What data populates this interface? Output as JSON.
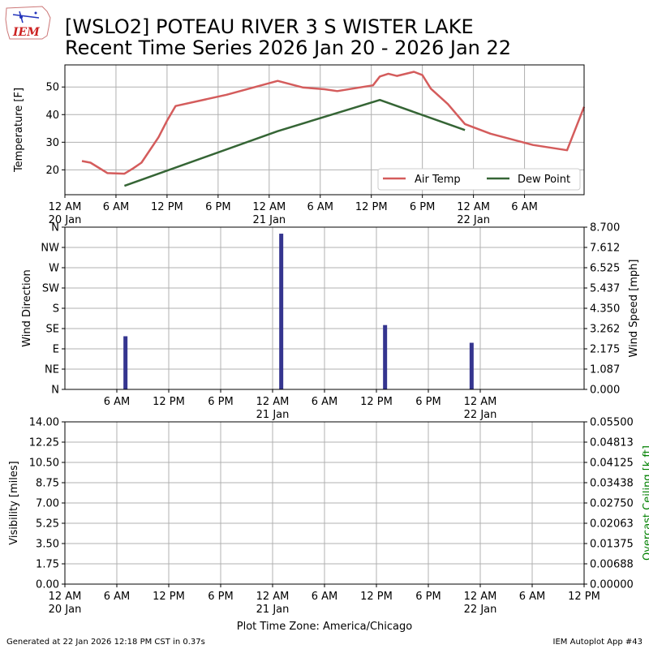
{
  "header": {
    "title_line1": "[WSLO2] POTEAU RIVER 3 S WISTER LAKE",
    "title_line2": "Recent Time Series 2026 Jan 20 - 2026 Jan 22",
    "logo_text": "IEM"
  },
  "footer": {
    "generated": "Generated at 22 Jan 2026 12:18 PM CST in 0.37s",
    "app": "IEM Autoplot App #43",
    "xlabel": "Plot Time Zone: America/Chicago"
  },
  "colors": {
    "air_temp": "#d45c5c",
    "dew_point": "#356535",
    "wind_bar": "#35358f",
    "ceiling_label": "#008000",
    "grid": "#b0b0b0"
  },
  "chart_data": [
    {
      "type": "line",
      "ylabel": "Temperature [F]",
      "ylim": [
        11,
        58
      ],
      "yticks": [
        "20",
        "30",
        "40",
        "50"
      ],
      "xlim": [
        0,
        61
      ],
      "xticks": [
        {
          "h": 0,
          "l1": "12 AM",
          "l2": "20 Jan"
        },
        {
          "h": 6,
          "l1": "6 AM",
          "l2": ""
        },
        {
          "h": 12,
          "l1": "12 PM",
          "l2": ""
        },
        {
          "h": 18,
          "l1": "6 PM",
          "l2": ""
        },
        {
          "h": 24,
          "l1": "12 AM",
          "l2": "21 Jan"
        },
        {
          "h": 30,
          "l1": "6 AM",
          "l2": ""
        },
        {
          "h": 36,
          "l1": "12 PM",
          "l2": ""
        },
        {
          "h": 42,
          "l1": "6 PM",
          "l2": ""
        },
        {
          "h": 48,
          "l1": "12 AM",
          "l2": "22 Jan"
        },
        {
          "h": 54,
          "l1": "6 AM",
          "l2": ""
        }
      ],
      "grid": true,
      "legend_position": "lower-right",
      "series": [
        {
          "name": "Air Temp",
          "color": "#d45c5c",
          "x": [
            2,
            3,
            5,
            7,
            8,
            9,
            11,
            12,
            13,
            19,
            25,
            28,
            30.5,
            32,
            35,
            36.2,
            37,
            38,
            39,
            41,
            42,
            43,
            45,
            47,
            50,
            55,
            59,
            61
          ],
          "y": [
            23.2,
            22.6,
            18.8,
            18.6,
            20.5,
            22.6,
            31.8,
            37.8,
            43.1,
            47.2,
            52.2,
            49.8,
            49.2,
            48.5,
            50.0,
            50.6,
            53.8,
            54.8,
            54.0,
            55.5,
            54.3,
            49.4,
            43.8,
            36.6,
            33.1,
            29.0,
            27.1,
            42.8
          ]
        },
        {
          "name": "Dew Point",
          "color": "#356535",
          "x": [
            7,
            25,
            37,
            47
          ],
          "y": [
            14.2,
            34.0,
            45.3,
            34.4
          ]
        }
      ]
    },
    {
      "type": "bar",
      "ylabel": "Wind Direction",
      "y2label": "Wind Speed [mph]",
      "yticks": [
        "N",
        "NE",
        "E",
        "SE",
        "S",
        "SW",
        "W",
        "NW",
        "N"
      ],
      "y2ticks": [
        "0.000",
        "1.087",
        "2.175",
        "3.262",
        "4.350",
        "5.437",
        "6.525",
        "7.612",
        "8.700"
      ],
      "ylim": [
        0,
        8.7
      ],
      "xlim": [
        0,
        60
      ],
      "xticks": [
        {
          "h": 6,
          "l1": "6 AM",
          "l2": ""
        },
        {
          "h": 12,
          "l1": "12 PM",
          "l2": ""
        },
        {
          "h": 18,
          "l1": "6 PM",
          "l2": ""
        },
        {
          "h": 24,
          "l1": "12 AM",
          "l2": "21 Jan"
        },
        {
          "h": 30,
          "l1": "6 AM",
          "l2": ""
        },
        {
          "h": 36,
          "l1": "12 PM",
          "l2": ""
        },
        {
          "h": 42,
          "l1": "6 PM",
          "l2": ""
        },
        {
          "h": 48,
          "l1": "12 AM",
          "l2": "22 Jan"
        }
      ],
      "grid": true,
      "bars": [
        {
          "x": 7,
          "value": 2.85
        },
        {
          "x": 25,
          "value": 8.35
        },
        {
          "x": 37,
          "value": 3.45
        },
        {
          "x": 47,
          "value": 2.5
        }
      ]
    },
    {
      "type": "line",
      "ylabel": "Visibility [miles]",
      "y2label": "Overcast Ceiling [k ft]",
      "yticks": [
        "0.00",
        "1.75",
        "3.50",
        "5.25",
        "7.00",
        "8.75",
        "10.50",
        "12.25",
        "14.00"
      ],
      "y2ticks": [
        "0.00000",
        "0.00688",
        "0.01375",
        "0.02063",
        "0.02750",
        "0.03438",
        "0.04125",
        "0.04813",
        "0.05500"
      ],
      "ylim": [
        0,
        14
      ],
      "xlim": [
        0,
        60
      ],
      "xticks": [
        {
          "h": 0,
          "l1": "12 AM",
          "l2": "20 Jan"
        },
        {
          "h": 6,
          "l1": "6 AM",
          "l2": ""
        },
        {
          "h": 12,
          "l1": "12 PM",
          "l2": ""
        },
        {
          "h": 18,
          "l1": "6 PM",
          "l2": ""
        },
        {
          "h": 24,
          "l1": "12 AM",
          "l2": "21 Jan"
        },
        {
          "h": 30,
          "l1": "6 AM",
          "l2": ""
        },
        {
          "h": 36,
          "l1": "12 PM",
          "l2": ""
        },
        {
          "h": 42,
          "l1": "6 PM",
          "l2": ""
        },
        {
          "h": 48,
          "l1": "12 AM",
          "l2": "22 Jan"
        },
        {
          "h": 54,
          "l1": "6 AM",
          "l2": ""
        },
        {
          "h": 60,
          "l1": "12 PM",
          "l2": ""
        }
      ],
      "grid": true,
      "series": []
    }
  ]
}
